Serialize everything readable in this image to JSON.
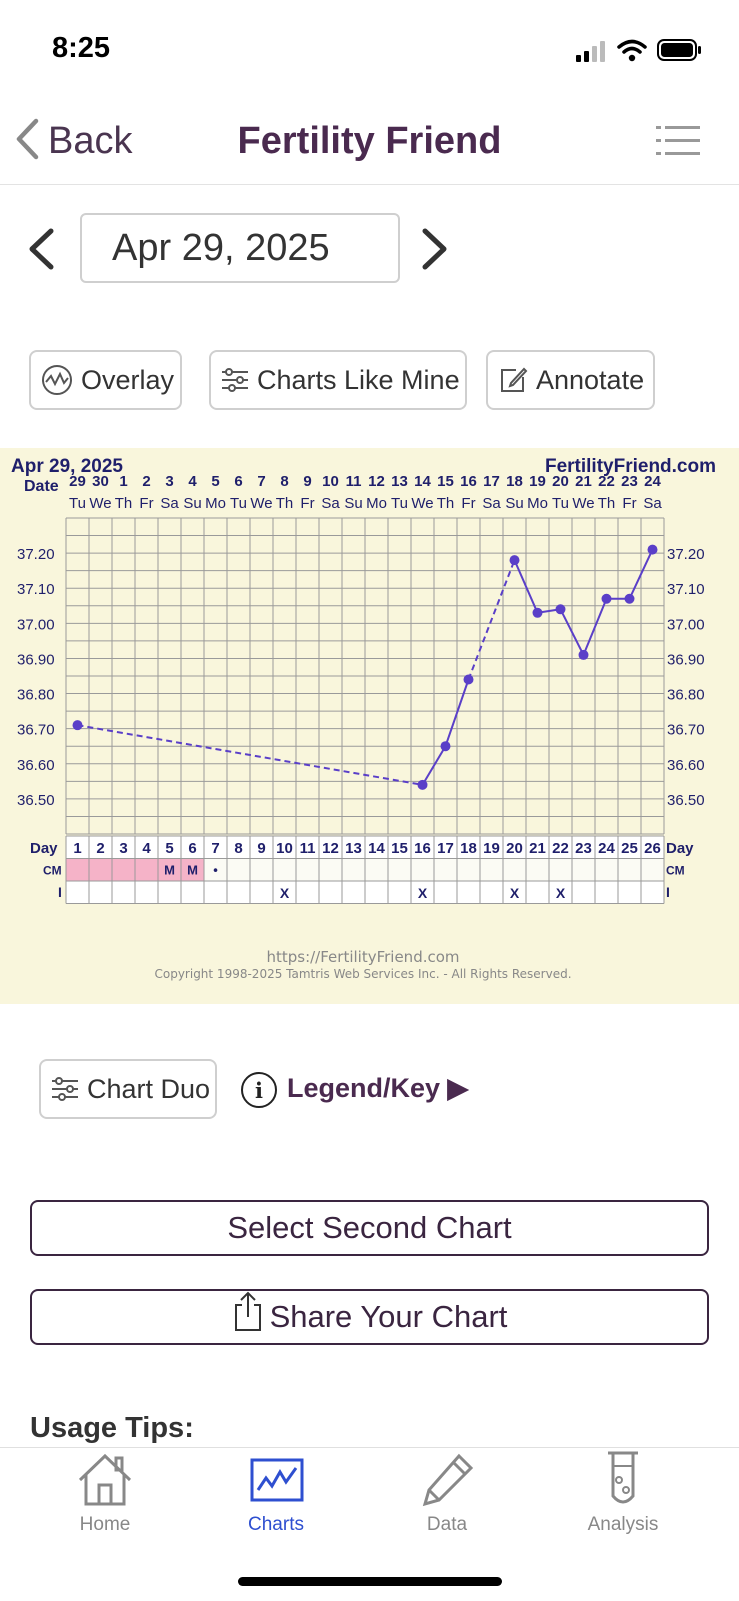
{
  "status": {
    "time": "8:25"
  },
  "nav": {
    "back_label": "Back",
    "title": "Fertility Friend",
    "menu_icon": "list-icon"
  },
  "date_selector": {
    "value": "Apr 29, 2025"
  },
  "actions": {
    "overlay": "Overlay",
    "charts_like_mine": "Charts Like Mine",
    "annotate": "Annotate"
  },
  "chart_data": {
    "type": "line",
    "header_date": "Apr 29, 2025",
    "brand": "FertilityFriend.com",
    "date_row_label": "Date",
    "dates": [
      "29",
      "30",
      "1",
      "2",
      "3",
      "4",
      "5",
      "6",
      "7",
      "8",
      "9",
      "10",
      "11",
      "12",
      "13",
      "14",
      "15",
      "16",
      "17",
      "18",
      "19",
      "20",
      "21",
      "22",
      "23",
      "24"
    ],
    "weekdays": [
      "Tu",
      "We",
      "Th",
      "Fr",
      "Sa",
      "Su",
      "Mo",
      "Tu",
      "We",
      "Th",
      "Fr",
      "Sa",
      "Su",
      "Mo",
      "Tu",
      "We",
      "Th",
      "Fr",
      "Sa",
      "Su",
      "Mo",
      "Tu",
      "We",
      "Th",
      "Fr",
      "Sa"
    ],
    "y_ticks": [
      "37.20",
      "37.10",
      "37.00",
      "36.90",
      "36.80",
      "36.70",
      "36.60",
      "36.50"
    ],
    "ylim": [
      36.4,
      37.3
    ],
    "temperatures": [
      {
        "day": 1,
        "value": 36.71
      },
      {
        "day": 16,
        "value": 36.54
      },
      {
        "day": 17,
        "value": 36.65
      },
      {
        "day": 18,
        "value": 36.84
      },
      {
        "day": 20,
        "value": 37.18
      },
      {
        "day": 21,
        "value": 37.03
      },
      {
        "day": 22,
        "value": 37.04
      },
      {
        "day": 23,
        "value": 36.91
      },
      {
        "day": 24,
        "value": 37.07
      },
      {
        "day": 25,
        "value": 37.07
      },
      {
        "day": 26,
        "value": 37.21
      }
    ],
    "dashed_segments": [
      [
        1,
        16
      ],
      [
        18,
        20
      ]
    ],
    "day_row_label": "Day",
    "days": [
      "1",
      "2",
      "3",
      "4",
      "5",
      "6",
      "7",
      "8",
      "9",
      "10",
      "11",
      "12",
      "13",
      "14",
      "15",
      "16",
      "17",
      "18",
      "19",
      "20",
      "21",
      "22",
      "23",
      "24",
      "25",
      "26"
    ],
    "cm_label": "CM",
    "cm_row": [
      "",
      "",
      "",
      "",
      "M",
      "M",
      "•",
      "",
      "",
      "",
      "",
      "",
      "",
      "",
      "",
      "",
      "",
      "",
      "",
      "",
      "",
      "",
      "",
      "",
      "",
      ""
    ],
    "period_days": [
      1,
      2,
      3,
      4,
      5,
      6
    ],
    "i_label": "I",
    "i_row": [
      "",
      "",
      "",
      "",
      "",
      "",
      "",
      "",
      "",
      "X",
      "",
      "",
      "",
      "",
      "",
      "X",
      "",
      "",
      "",
      "X",
      "",
      "X",
      "",
      "",
      "",
      ""
    ],
    "footer_url": "https://FertilityFriend.com",
    "footer_copyright": "Copyright 1998-2025 Tamtris Web Services Inc. - All Rights Reserved.",
    "colors": {
      "background": "#f9f6dc",
      "grid": "#9a9a9a",
      "line": "#5a3fc8",
      "text": "#1f1f6b",
      "period": "#f5b3c8"
    }
  },
  "tools": {
    "chart_duo": "Chart Duo",
    "legend_key": "Legend/Key ▶"
  },
  "buttons": {
    "select_second": "Select Second Chart",
    "share": "Share Your Chart"
  },
  "usage_tips": "Usage Tips:",
  "tabs": [
    {
      "label": "Home",
      "icon": "home-icon",
      "active": false
    },
    {
      "label": "Charts",
      "icon": "chart-icon",
      "active": true
    },
    {
      "label": "Data",
      "icon": "pencil-icon",
      "active": false
    },
    {
      "label": "Analysis",
      "icon": "test-tube-icon",
      "active": false
    }
  ]
}
